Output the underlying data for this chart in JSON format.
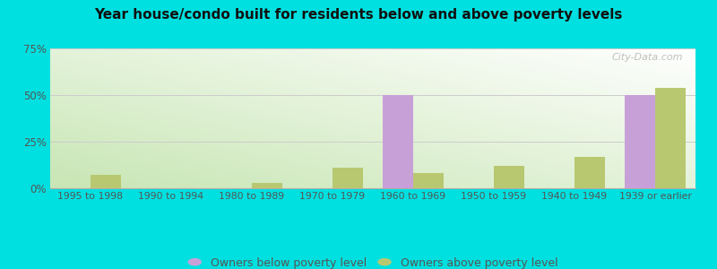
{
  "title": "Year house/condo built for residents below and above poverty levels",
  "categories": [
    "1995 to 1998",
    "1990 to 1994",
    "1980 to 1989",
    "1970 to 1979",
    "1960 to 1969",
    "1950 to 1959",
    "1940 to 1949",
    "1939 or earlier"
  ],
  "below_poverty": [
    0,
    0,
    0,
    0,
    50,
    0,
    0,
    50
  ],
  "above_poverty": [
    7,
    0,
    3,
    11,
    8,
    12,
    17,
    54
  ],
  "below_color": "#c8a0d8",
  "above_color": "#b8c870",
  "background_color": "#00e0e0",
  "ylim": [
    0,
    75
  ],
  "yticks": [
    0,
    25,
    50,
    75
  ],
  "yticklabels": [
    "0%",
    "25%",
    "50%",
    "75%"
  ],
  "legend_below": "Owners below poverty level",
  "legend_above": "Owners above poverty level",
  "bar_width": 0.38
}
